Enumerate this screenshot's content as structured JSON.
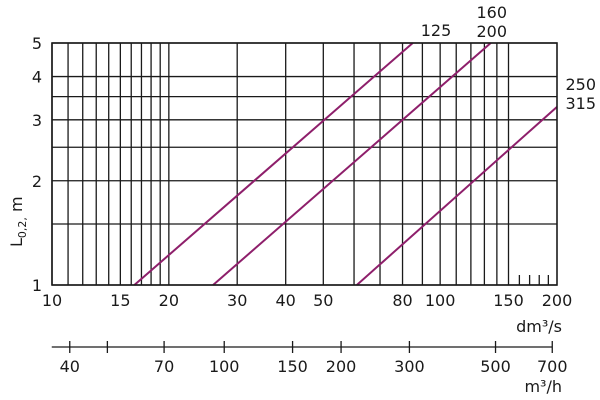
{
  "chart_data": {
    "type": "line",
    "title": "",
    "xlabel": "dm³/s",
    "x2label": "m³/h",
    "ylabel": "L0,2, m",
    "x_scale": "log",
    "y_scale": "log",
    "xlim": [
      10,
      200
    ],
    "ylim": [
      1,
      5
    ],
    "x_ticks": [
      10,
      15,
      20,
      30,
      40,
      50,
      80,
      100,
      150,
      200
    ],
    "x_ticks_minor": [
      160,
      170,
      180,
      190
    ],
    "x2_ticks": [
      40,
      70,
      100,
      150,
      200,
      300,
      500,
      700
    ],
    "x2_ticks_unlabeled": [
      50
    ],
    "y_ticks": [
      1,
      2,
      3,
      4,
      5
    ],
    "grid": true,
    "x_grid": [
      10,
      11,
      12,
      13,
      14,
      15,
      16,
      17,
      18,
      19,
      20,
      30,
      40,
      50,
      60,
      70,
      80,
      90,
      100,
      110,
      120,
      130,
      140,
      150
    ],
    "y_grid": [
      1,
      1.5,
      2,
      2.5,
      3,
      3.5,
      4,
      5
    ],
    "series": [
      {
        "name": "125",
        "x": [
          16.3,
          85
        ],
        "y": [
          1,
          5
        ]
      },
      {
        "name": "160 200",
        "x": [
          26,
          135
        ],
        "y": [
          1,
          5
        ]
      },
      {
        "name": "250 315",
        "x": [
          61,
          200
        ],
        "y": [
          1,
          3.27
        ]
      }
    ],
    "series_labels": [
      {
        "lines": [
          "125"
        ]
      },
      {
        "lines": [
          "160",
          "200"
        ]
      },
      {
        "lines": [
          "250",
          "315"
        ]
      }
    ],
    "colors": {
      "series": "#8e1f6b",
      "axes": "#1a1a1a"
    }
  }
}
